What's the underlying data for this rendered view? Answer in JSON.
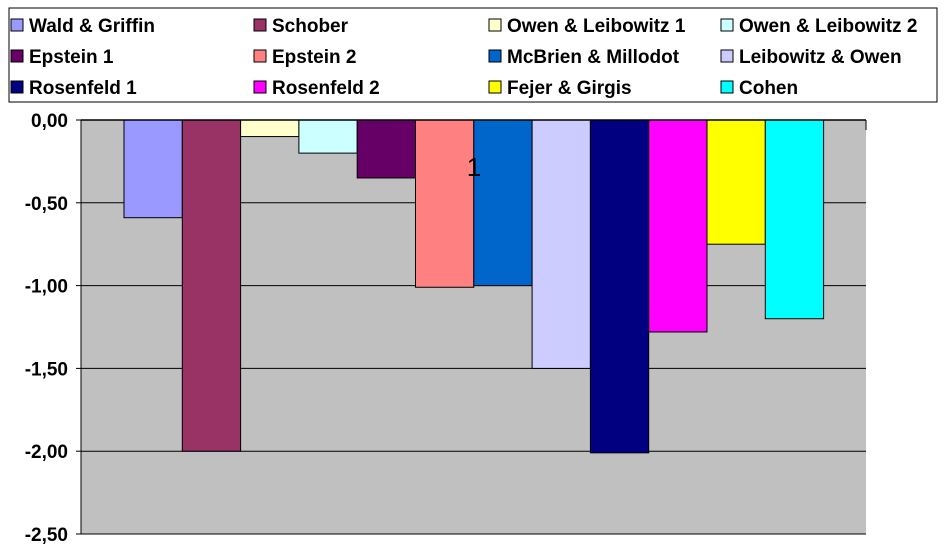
{
  "chart_data": {
    "type": "bar",
    "categories": [
      "1"
    ],
    "series": [
      {
        "name": "Wald & Griffin",
        "values": [
          -0.59
        ],
        "color": "#9999ff"
      },
      {
        "name": "Schober",
        "values": [
          -2.0
        ],
        "color": "#993366"
      },
      {
        "name": "Owen & Leibowitz 1",
        "values": [
          -0.1
        ],
        "color": "#ffffcc"
      },
      {
        "name": "Owen & Leibowitz 2",
        "values": [
          -0.2
        ],
        "color": "#ccffff"
      },
      {
        "name": "Epstein 1",
        "values": [
          -0.35
        ],
        "color": "#660066"
      },
      {
        "name": "Epstein 2",
        "values": [
          -1.01
        ],
        "color": "#ff8080"
      },
      {
        "name": "McBrien & Millodot",
        "values": [
          -1.0
        ],
        "color": "#0066cc"
      },
      {
        "name": "Leibowitz & Owen",
        "values": [
          -1.5
        ],
        "color": "#ccccff"
      },
      {
        "name": "Rosenfeld 1",
        "values": [
          -2.01
        ],
        "color": "#000080"
      },
      {
        "name": "Rosenfeld 2",
        "values": [
          -1.28
        ],
        "color": "#ff00ff"
      },
      {
        "name": "Fejer & Girgis",
        "values": [
          -0.75
        ],
        "color": "#ffff00"
      },
      {
        "name": "Cohen",
        "values": [
          -1.2
        ],
        "color": "#00ffff"
      }
    ],
    "yticks": [
      "0,00",
      "-0,50",
      "-1,00",
      "-1,50",
      "-2,00",
      "-2,50"
    ],
    "ylim": [
      -2.5,
      0
    ],
    "grid": true,
    "legend": "top",
    "plot_background": "#c0c0c0"
  }
}
